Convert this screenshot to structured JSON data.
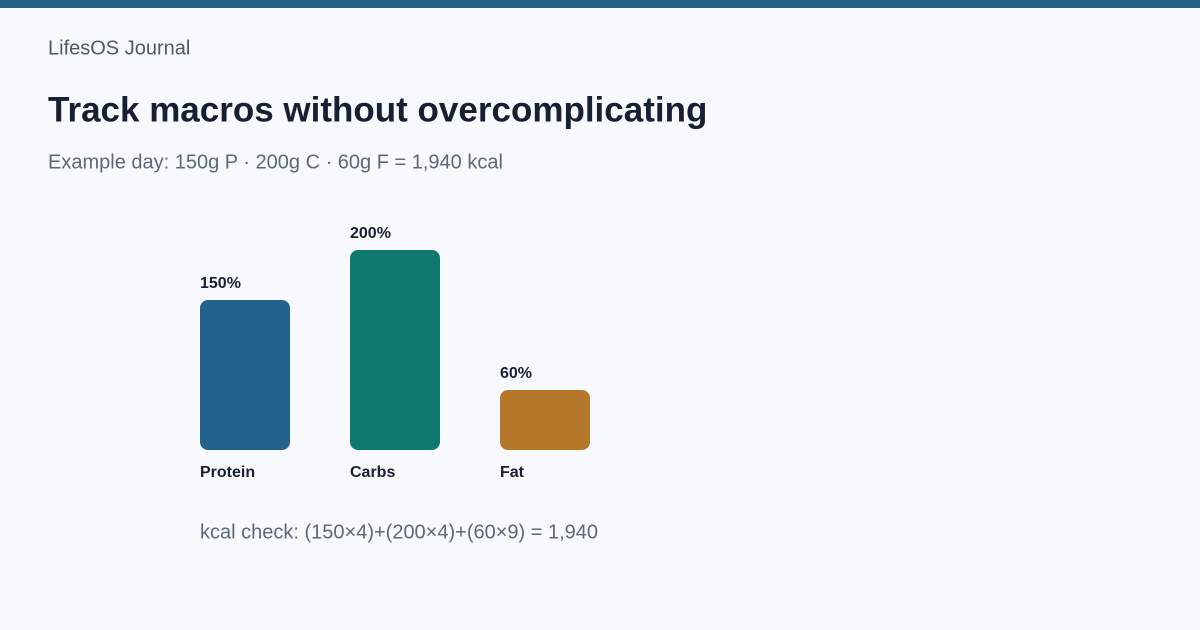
{
  "brand": "LifesOS Journal",
  "chart_data": {
    "type": "bar",
    "title": "Track macros without overcomplicating",
    "subtitle": "Example day: 150g P · 200g C · 60g F = 1,940 kcal",
    "categories": [
      "Protein",
      "Carbs",
      "Fat"
    ],
    "values": [
      150,
      200,
      60
    ],
    "value_labels": [
      "150%",
      "200%",
      "60%"
    ],
    "colors": [
      "#23628a",
      "#0f796e",
      "#b5782a"
    ],
    "annotation": "kcal check: (150×4)+(200×4)+(60×9) = 1,940"
  }
}
